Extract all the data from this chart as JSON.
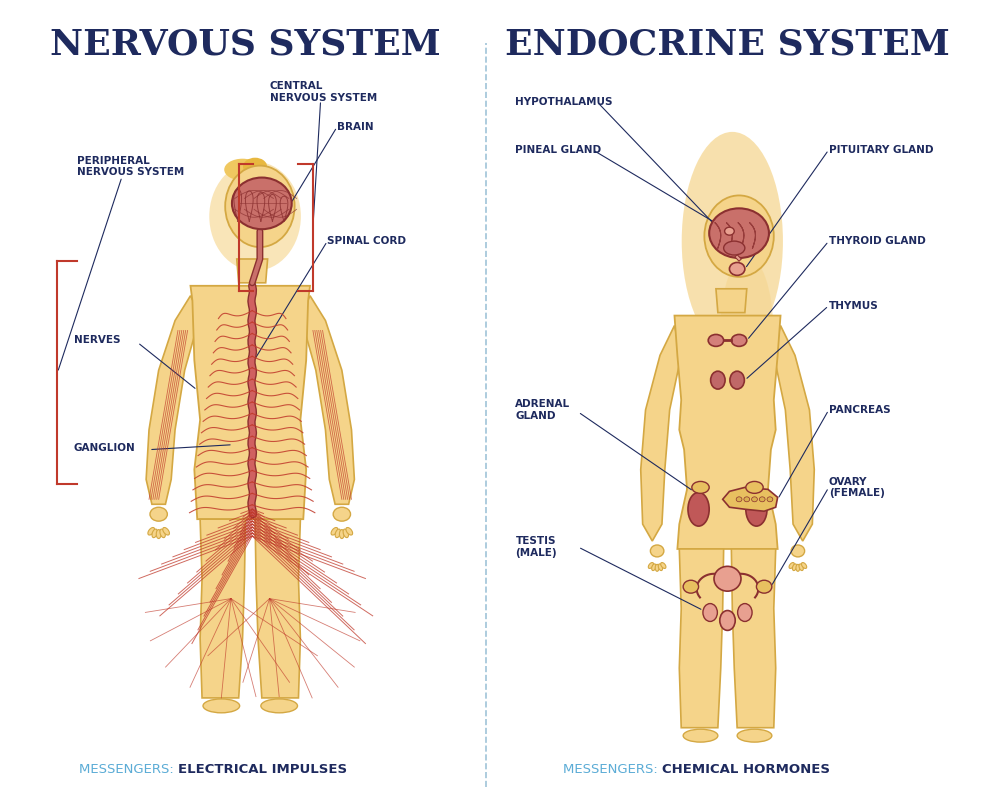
{
  "background_color": "#ffffff",
  "title_left": "NERVOUS SYSTEM",
  "title_right": "ENDOCRINE SYSTEM",
  "title_color": "#1e2a5e",
  "title_fontsize": 26,
  "messenger_label_color": "#5bacd6",
  "messenger_bold_color": "#1e2a5e",
  "messenger_left": "MESSENGERS: ",
  "messenger_left_bold": "ELECTRICAL IMPULSES",
  "messenger_right": "MESSENGERS: ",
  "messenger_right_bold": "CHEMICAL HORMONES",
  "divider_color": "#a0c4d8",
  "body_fill": "#f5d48a",
  "body_outline": "#d4a843",
  "body_fill_light": "#fde9b0",
  "nerve_color": "#c0392b",
  "nerve_color2": "#d4756a",
  "brain_fill": "#c9706a",
  "brain_outline": "#8b3030",
  "organ_fill": "#d4807a",
  "organ_fill2": "#e8a090",
  "organ_fill3": "#e8c060",
  "organ_outline": "#8b3030",
  "cns_bracket_color": "#c0392b",
  "label_fontsize": 7.5,
  "label_color": "#1e2a5e",
  "line_color": "#1e2a5e"
}
